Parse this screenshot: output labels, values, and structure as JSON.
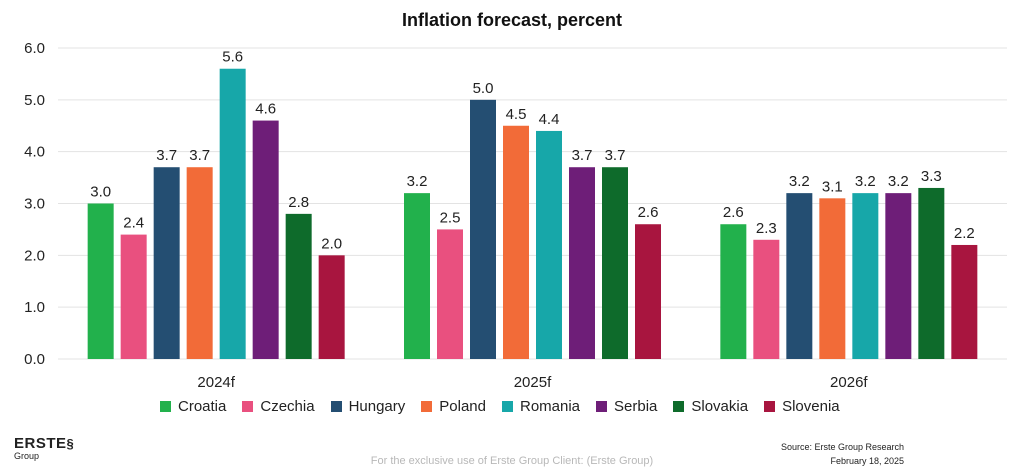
{
  "chart_data": {
    "type": "bar",
    "title": "Inflation forecast, percent",
    "categories": [
      "2024f",
      "2025f",
      "2026f"
    ],
    "series": [
      {
        "name": "Croatia",
        "color": "#22b14c",
        "values": [
          3.0,
          3.2,
          2.6
        ],
        "labels": [
          "3.0",
          "3.2",
          "2.6"
        ]
      },
      {
        "name": "Czechia",
        "color": "#e9507f",
        "values": [
          2.4,
          2.5,
          2.3
        ],
        "labels": [
          "2.4",
          "2.5",
          "2.3"
        ]
      },
      {
        "name": "Hungary",
        "color": "#244e72",
        "values": [
          3.7,
          5.0,
          3.2
        ],
        "labels": [
          "3.7",
          "5.0",
          "3.2"
        ]
      },
      {
        "name": "Poland",
        "color": "#f26b38",
        "values": [
          3.7,
          4.5,
          3.1
        ],
        "labels": [
          "3.7",
          "4.5",
          "3.1"
        ]
      },
      {
        "name": "Romania",
        "color": "#17a7a9",
        "values": [
          5.6,
          4.4,
          3.2
        ],
        "labels": [
          "5.6",
          "4.4",
          "3.2"
        ]
      },
      {
        "name": "Serbia",
        "color": "#6e1e78",
        "values": [
          4.6,
          3.7,
          3.2
        ],
        "labels": [
          "4.6",
          "3.7",
          "3.2"
        ]
      },
      {
        "name": "Slovakia",
        "color": "#0e6b2b",
        "values": [
          2.8,
          3.7,
          3.3
        ],
        "labels": [
          "2.8",
          "3.7",
          "3.3"
        ]
      },
      {
        "name": "Slovenia",
        "color": "#a8153f",
        "values": [
          2.0,
          2.6,
          2.2
        ],
        "labels": [
          "2.0",
          "2.6",
          "2.2"
        ]
      }
    ],
    "ylim": [
      0,
      6
    ],
    "yticks": [
      "0.0",
      "1.0",
      "2.0",
      "3.0",
      "4.0",
      "5.0",
      "6.0"
    ],
    "grid": true,
    "legend": "bottom"
  },
  "branding": {
    "logo_main": "ERSTE",
    "logo_sub": "Group"
  },
  "footer": {
    "note": "For the exclusive use of Erste Group Client: (Erste Group)",
    "source": "Source: Erste Group Research",
    "date": "February 18, 2025"
  }
}
